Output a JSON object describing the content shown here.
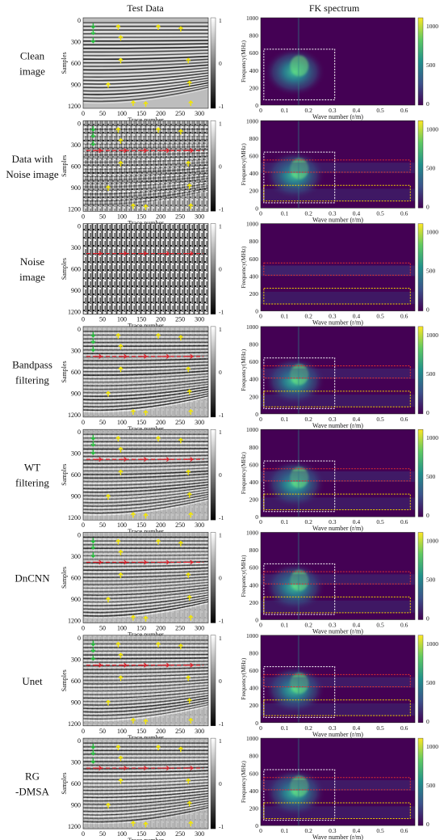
{
  "headers": {
    "left": "Test Data",
    "right": "FK spectrum"
  },
  "rows": [
    {
      "label": [
        "Clean",
        "image"
      ],
      "noise_lines": false,
      "seismic": true,
      "arrows": "full",
      "fk_boxes": [
        "white"
      ],
      "fk_cbar_max": "1000",
      "fk_cbar_ticks": [
        "1000",
        "500",
        "0"
      ]
    },
    {
      "label": [
        "Data with",
        "Noise image"
      ],
      "noise_lines": true,
      "seismic": true,
      "arrows": "full",
      "fk_boxes": [
        "white",
        "red",
        "yellow"
      ],
      "fk_cbar_max": "1000",
      "fk_cbar_ticks": [
        "1000",
        "500",
        "0"
      ]
    },
    {
      "label": [
        "Noise",
        "image"
      ],
      "noise_lines": true,
      "seismic": false,
      "arrows": "none",
      "fk_boxes": [
        "red",
        "yellow"
      ],
      "fk_cbar_max": "1000",
      "fk_cbar_ticks": [
        "1000",
        "500",
        "0"
      ]
    },
    {
      "label": [
        "Bandpass",
        "filtering"
      ],
      "noise_lines": true,
      "seismic": true,
      "arrows": "full",
      "fk_boxes": [
        "white",
        "red",
        "yellow"
      ],
      "fk_cbar_max": "1000",
      "fk_cbar_ticks": [
        "1000",
        "500",
        "0"
      ]
    },
    {
      "label": [
        "WT",
        "filtering"
      ],
      "noise_lines": true,
      "seismic": true,
      "arrows": "full",
      "fk_boxes": [
        "white",
        "red",
        "yellow"
      ],
      "fk_cbar_max": "1000",
      "fk_cbar_ticks": [
        "1000",
        "500",
        "0"
      ]
    },
    {
      "label": [
        "DnCNN"
      ],
      "noise_lines": true,
      "seismic": true,
      "arrows": "full",
      "fk_boxes": [
        "white",
        "red",
        "yellow"
      ],
      "fk_cbar_max": "1000",
      "fk_cbar_ticks": [
        "1000",
        "500",
        "0"
      ]
    },
    {
      "label": [
        "Unet"
      ],
      "noise_lines": true,
      "seismic": true,
      "arrows": "full",
      "fk_boxes": [
        "white",
        "red",
        "yellow"
      ],
      "fk_cbar_max": "1000",
      "fk_cbar_ticks": [
        "1000",
        "500",
        "0"
      ]
    },
    {
      "label": [
        "RG",
        "-DMSA"
      ],
      "noise_lines": true,
      "seismic": true,
      "arrows": "full",
      "fk_boxes": [
        "white",
        "red",
        "yellow"
      ],
      "fk_cbar_max": "1000",
      "fk_cbar_ticks": [
        "1000",
        "500",
        "0"
      ]
    }
  ],
  "test_axes": {
    "ylabel": "Samples",
    "xlabel": "Trace number",
    "yticks": [
      "0",
      "300",
      "600",
      "900",
      "1200"
    ],
    "xticks": [
      "0",
      "50",
      "100",
      "150",
      "200",
      "250",
      "300"
    ],
    "cbar_ticks": [
      "1",
      "0",
      "-1"
    ]
  },
  "fk_axes": {
    "ylabel": "Frequency(MHz)",
    "xlabel": "Wave number (r/m)",
    "yticks": [
      "1000",
      "800",
      "600",
      "400",
      "200",
      "0"
    ],
    "xticks": [
      "0",
      "0.1",
      "0.2",
      "0.3",
      "0.4",
      "0.5",
      "0.6"
    ]
  },
  "colors": {
    "arrow": "#f2e600",
    "green_arrow": "#22c03a",
    "noise_line": "#e0202a",
    "box_white": "#ffffff",
    "box_red": "#e03030",
    "box_yellow": "#f0d000",
    "fk_bg": "#440154"
  }
}
